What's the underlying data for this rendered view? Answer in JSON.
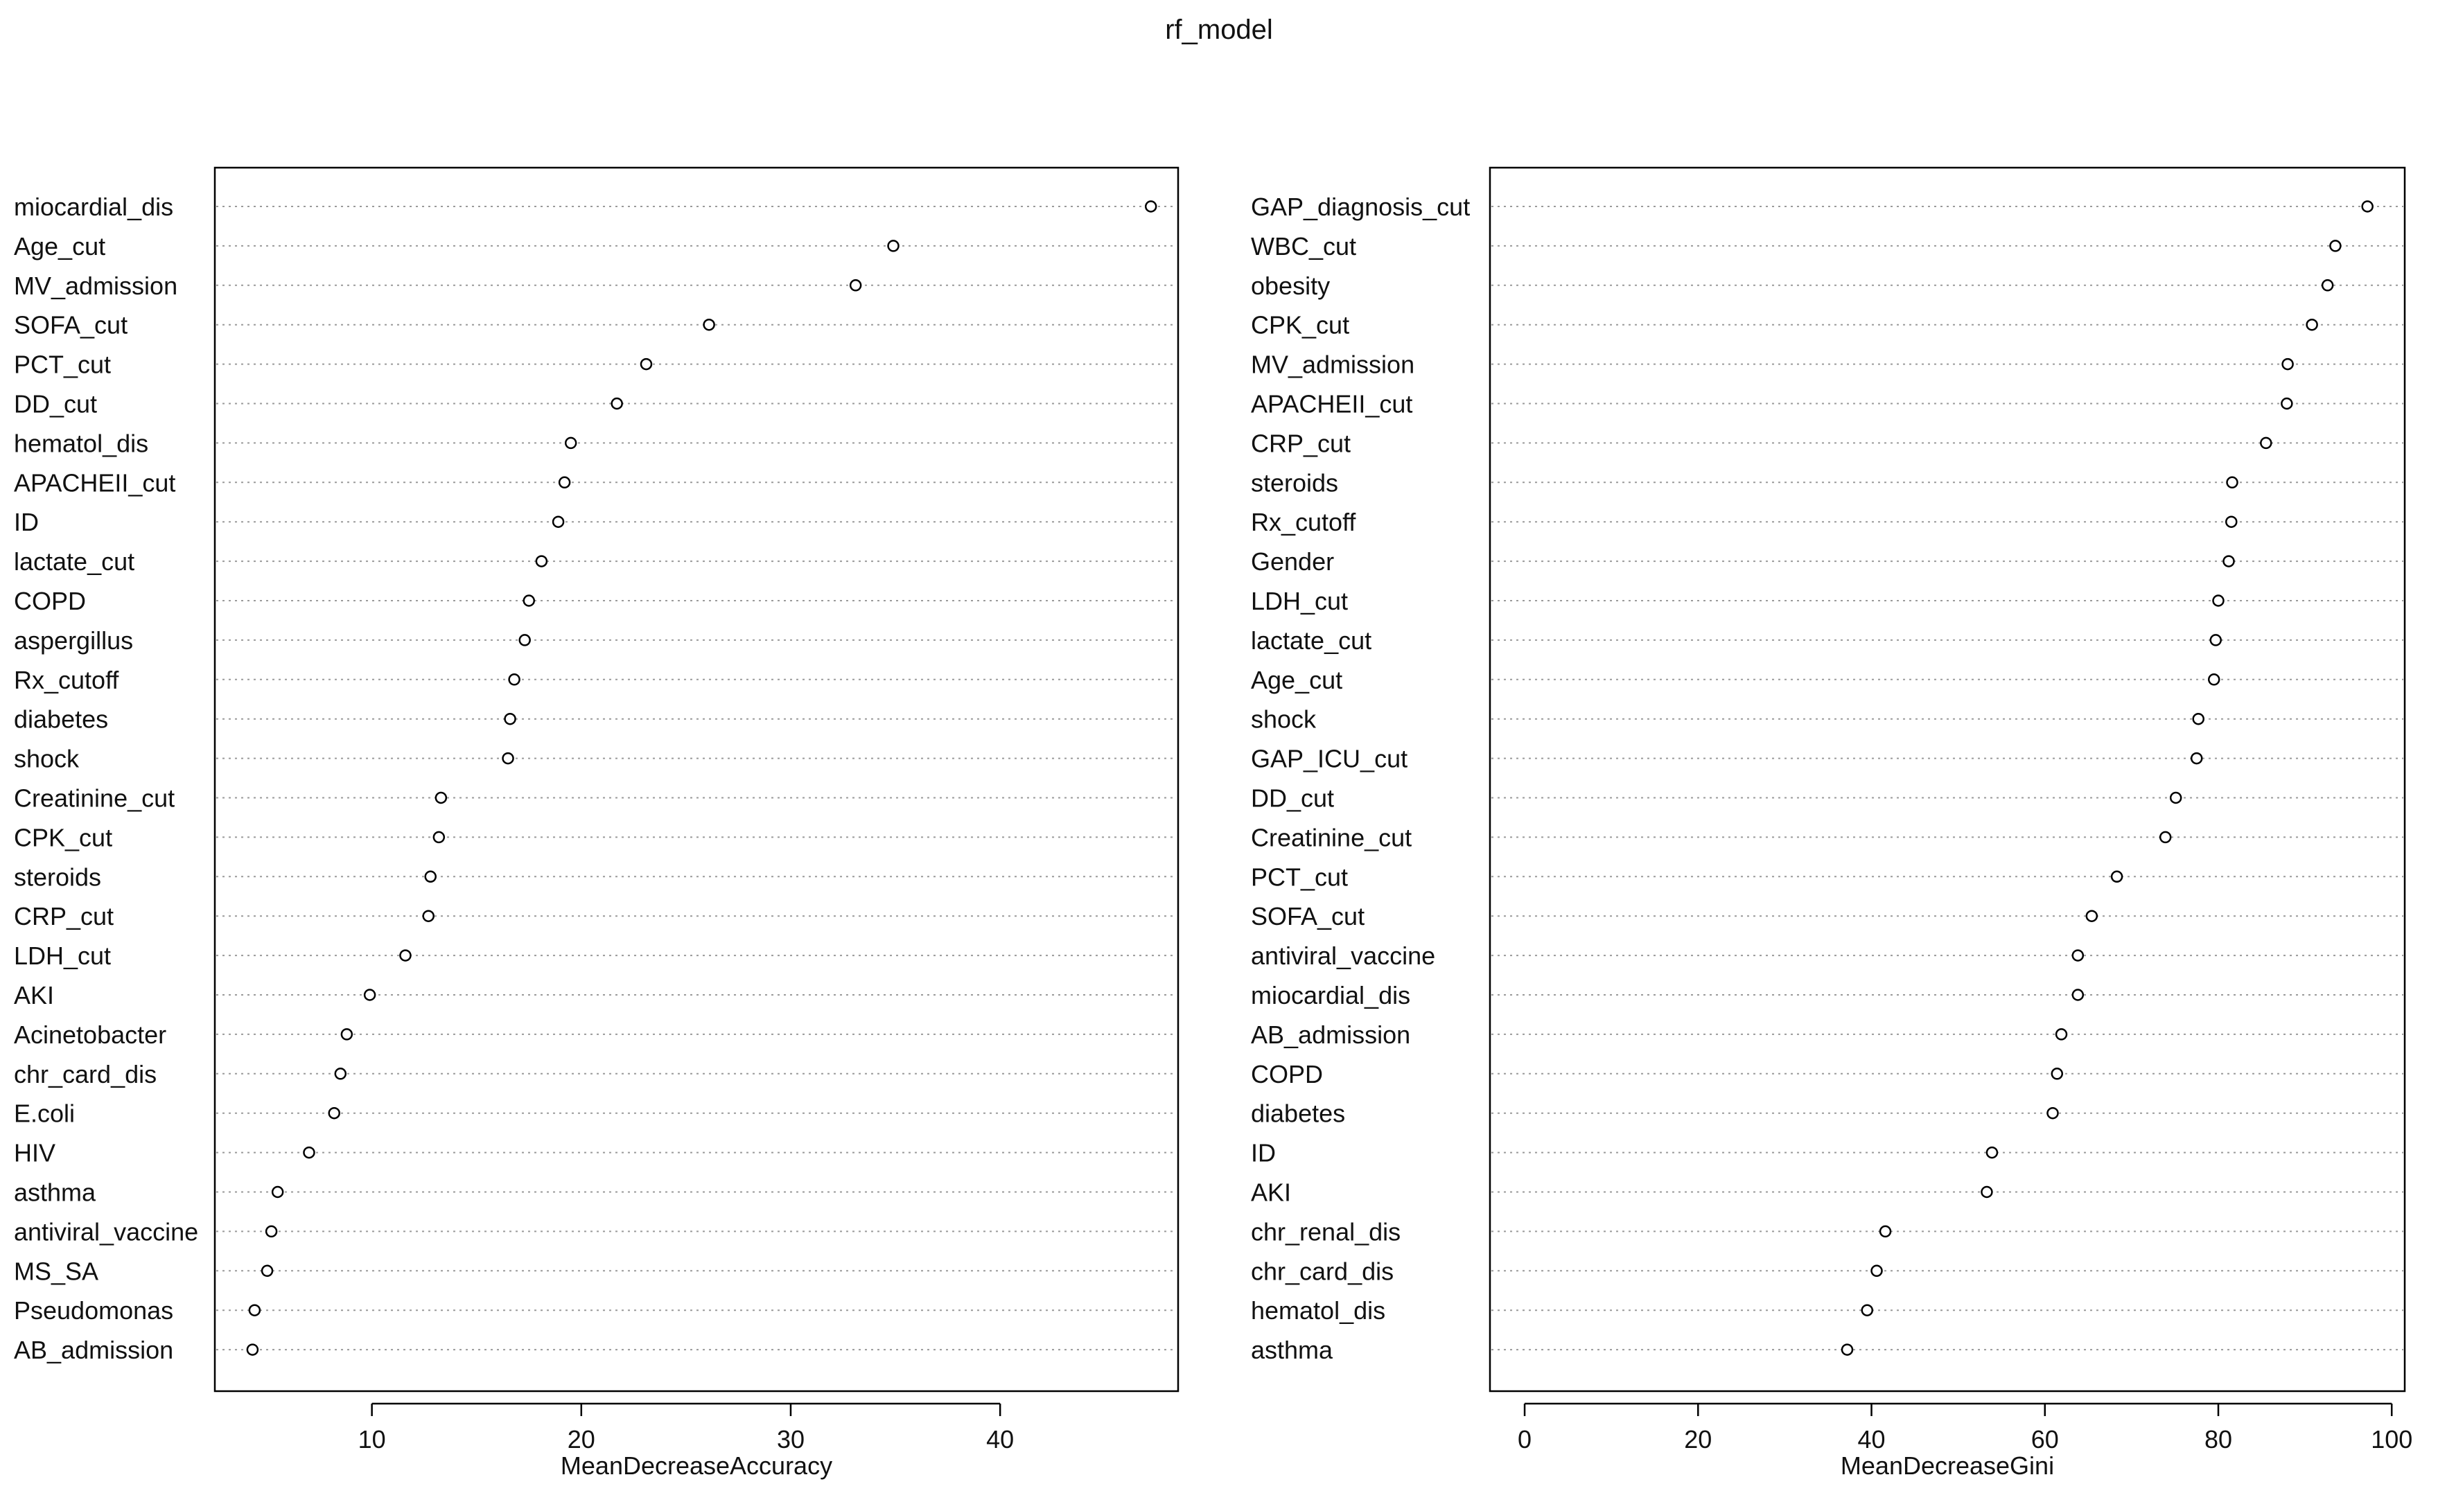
{
  "title": "rf_model",
  "chart_data": [
    {
      "type": "scatter",
      "xlabel": "MeanDecreaseAccuracy",
      "ylabel": "",
      "xlim": [
        2.5,
        48.5
      ],
      "xticks": [
        10,
        20,
        30,
        40
      ],
      "grid": "dotted horizontal",
      "categories": [
        "miocardial_dis",
        "Age_cut",
        "MV_admission",
        "SOFA_cut",
        "PCT_cut",
        "DD_cut",
        "hematol_dis",
        "APACHEII_cut",
        "ID",
        "lactate_cut",
        "COPD",
        "aspergillus",
        "Rx_cutoff",
        "diabetes",
        "shock",
        "Creatinine_cut",
        "CPK_cut",
        "steroids",
        "CRP_cut",
        "LDH_cut",
        "AKI",
        "Acinetobacter",
        "chr_card_dis",
        "E.coli",
        "HIV",
        "asthma",
        "antiviral_vaccine",
        "MS_SA",
        "Pseudomonas",
        "AB_admission"
      ],
      "values": [
        47.2,
        34.9,
        33.1,
        26.1,
        23.1,
        21.7,
        19.5,
        19.2,
        18.9,
        18.1,
        17.5,
        17.3,
        16.8,
        16.6,
        16.5,
        13.3,
        13.2,
        12.8,
        12.7,
        11.6,
        9.9,
        8.8,
        8.5,
        8.2,
        7.0,
        5.5,
        5.2,
        5.0,
        4.4,
        4.3
      ]
    },
    {
      "type": "scatter",
      "xlabel": "MeanDecreaseGini",
      "ylabel": "",
      "xlim": [
        -4,
        101.5
      ],
      "xticks": [
        0,
        20,
        40,
        60,
        80,
        100
      ],
      "grid": "dotted horizontal",
      "categories": [
        "GAP_diagnosis_cut",
        "WBC_cut",
        "obesity",
        "CPK_cut",
        "MV_admission",
        "APACHEII_cut",
        "CRP_cut",
        "steroids",
        "Rx_cutoff",
        "Gender",
        "LDH_cut",
        "lactate_cut",
        "Age_cut",
        "shock",
        "GAP_ICU_cut",
        "DD_cut",
        "Creatinine_cut",
        "PCT_cut",
        "SOFA_cut",
        "antiviral_vaccine",
        "miocardial_dis",
        "AB_admission",
        "COPD",
        "diabetes",
        "ID",
        "AKI",
        "chr_renal_dis",
        "chr_card_dis",
        "hematol_dis",
        "asthma"
      ],
      "values": [
        97.2,
        93.5,
        92.6,
        90.8,
        88.0,
        87.9,
        85.5,
        81.6,
        81.5,
        81.2,
        80.0,
        79.7,
        79.5,
        77.7,
        77.5,
        75.1,
        73.9,
        68.3,
        65.4,
        63.8,
        63.8,
        61.9,
        61.4,
        60.9,
        53.9,
        53.3,
        41.6,
        40.6,
        39.5,
        37.2
      ]
    }
  ]
}
